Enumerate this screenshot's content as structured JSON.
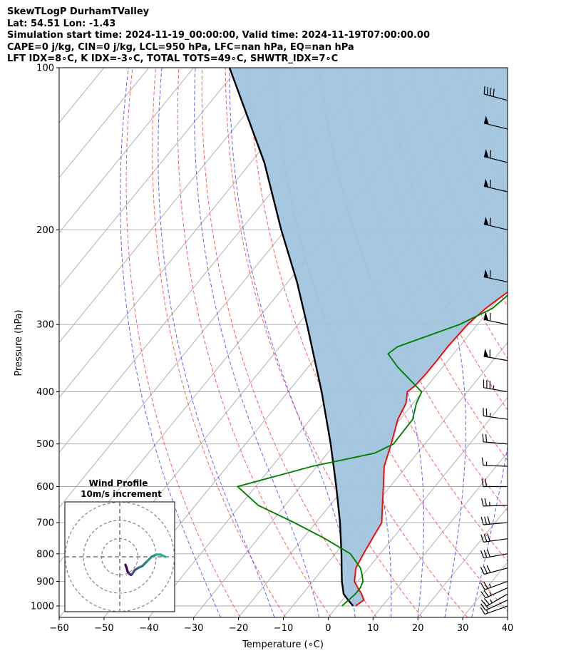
{
  "header": {
    "line1": "SkewTLogP DurhamTValley",
    "line2": "Lat: 54.51   Lon: -1.43",
    "line3": "Simulation start time: 2024-11-19_00:00:00, Valid time: 2024-11-19T07:00:00.00",
    "line4": "CAPE=0 j/kg, CIN=0 j/kg, LCL=950 hPa, LFC=nan hPa, EQ=nan hPa",
    "line5": "LFT IDX=8∘C, K IDX=-3∘C, TOTAL TOTS=49∘C, SHWTR_IDX=7∘C"
  },
  "chart_data": {
    "type": "line",
    "title": "SkewTLogP DurhamTValley",
    "xlabel": "Temperature (∘C)",
    "ylabel": "Pressure (hPa)",
    "xlim": [
      -60,
      40
    ],
    "ylim": [
      1050,
      100
    ],
    "y_scale": "log",
    "x_ticks": [
      "−60",
      "−50",
      "−40",
      "−30",
      "−20",
      "−10",
      "0",
      "10",
      "20",
      "30",
      "40"
    ],
    "y_ticks": [
      "100",
      "200",
      "300",
      "400",
      "500",
      "600",
      "700",
      "800",
      "900",
      "1000"
    ],
    "grid": true,
    "colors": {
      "temperature": "#ff0000",
      "dewpoint": "#008000",
      "parcel": "#000000",
      "shade": "#a0c4de",
      "dry_adiabat": "#ff4040",
      "moist_adiabat": "#3b3bff"
    },
    "series": [
      {
        "name": "",
        "pressure": [
          1000,
          975,
          950,
          925,
          900,
          850,
          800,
          750,
          700,
          650,
          600,
          550,
          500,
          450,
          420,
          400,
          390,
          370,
          350,
          330,
          300,
          280,
          265,
          250,
          230,
          200,
          170,
          150,
          130,
          115,
          100
        ],
        "values": [
          4,
          4.8,
          3.2,
          1.2,
          -0.7,
          -2.8,
          -3.7,
          -4.5,
          -5.3,
          -8.3,
          -11.5,
          -15,
          -17.5,
          -20.5,
          -21.6,
          -23.4,
          -22.8,
          -22.5,
          -22.5,
          -22.6,
          -22.2,
          -21.1,
          -19.6,
          -17.8,
          -15.8,
          -13.2,
          -10.4,
          -9.1,
          -8.3,
          -8.1,
          -8.2
        ]
      },
      {
        "name": "",
        "pressure": [
          1000,
          975,
          950,
          925,
          900,
          875,
          850,
          800,
          750,
          700,
          650,
          600,
          550,
          520,
          500,
          450,
          420,
          400,
          360,
          340,
          330,
          300,
          280,
          265,
          250,
          230,
          200,
          170,
          150,
          130,
          115,
          100
        ],
        "values": [
          1,
          1.4,
          1.8,
          1.8,
          1.2,
          -0.2,
          -1.8,
          -6.6,
          -15,
          -24.8,
          -36,
          -44,
          -31,
          -19.5,
          -17,
          -17.2,
          -19.3,
          -20.2,
          -30,
          -34.6,
          -33.8,
          -24,
          -19.6,
          -18.6,
          -18.3,
          -18,
          -16.8,
          -13.5,
          -9,
          -5.6,
          -2.8,
          0.4
        ]
      },
      {
        "name": "",
        "pressure": [
          1000,
          975,
          950,
          900,
          850,
          800,
          700,
          600,
          500,
          400,
          300,
          250,
          200,
          150,
          100
        ],
        "values": [
          3.5,
          1.3,
          -0.8,
          -3.5,
          -6,
          -8.6,
          -14.6,
          -22,
          -31,
          -42.5,
          -58,
          -68,
          -81,
          -97,
          -122
        ]
      }
    ],
    "wind_barbs": {
      "pressure": [
        1000,
        975,
        950,
        925,
        900,
        850,
        800,
        750,
        700,
        650,
        600,
        550,
        500,
        450,
        400,
        350,
        300,
        250,
        200,
        170,
        150,
        130,
        115
      ],
      "direction_deg": [
        250,
        245,
        240,
        245,
        250,
        255,
        260,
        262,
        265,
        268,
        270,
        272,
        275,
        278,
        280,
        280,
        282,
        282,
        283,
        283,
        284,
        284,
        285
      ],
      "speed_kt": [
        15,
        20,
        25,
        25,
        25,
        30,
        30,
        30,
        30,
        25,
        20,
        15,
        20,
        25,
        35,
        60,
        60,
        60,
        60,
        60,
        60,
        50,
        40
      ]
    },
    "inset": {
      "title": "Wind Profile",
      "subtitle": "10m/s increment",
      "u": [
        3.1,
        3.6,
        4.3,
        5.3,
        6.2,
        6.9,
        8.1,
        10,
        12.5,
        15,
        17.5,
        20,
        22.5,
        25
      ],
      "v": [
        -4.4,
        -5.6,
        -8.1,
        -9.4,
        -10,
        -9.4,
        -7.5,
        -6.2,
        -5,
        -2.5,
        0,
        1.2,
        1.2,
        0
      ]
    }
  }
}
